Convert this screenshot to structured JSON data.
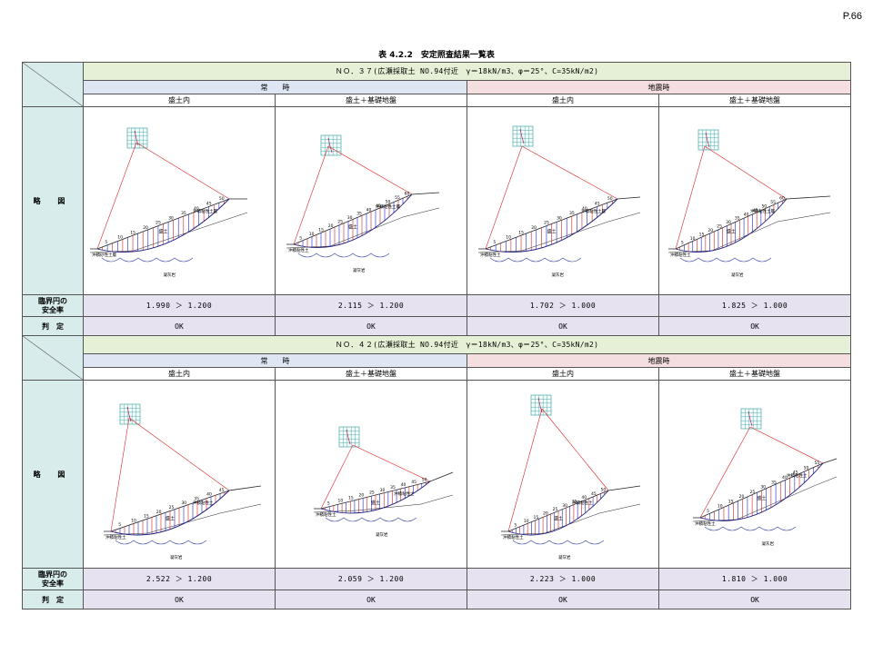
{
  "page_no": "P.66",
  "caption": "表 4.2.2　安定照査結果一覧表",
  "labels": {
    "sketch": "略 図",
    "safety_line1": "臨界円の",
    "safety_line2": "安全率",
    "judgement": "判　定",
    "normal": "常　　時",
    "quake": "地震時",
    "embank": "盛土内",
    "embank_base": "盛土＋基礎地盤"
  },
  "cases": [
    {
      "title": "ＮＯ．３７(広瀬採取土 NO.94付近　γ＝18kN/m3、φ＝25°、C=35kN/m2)",
      "factors": [
        "1.990 ＞ 1.200",
        "2.115 ＞ 1.200",
        "1.702 ＞ 1.000",
        "1.825 ＞ 1.000"
      ],
      "results": [
        "OK",
        "OK",
        "OK",
        "OK"
      ],
      "figures": [
        {
          "layer1": "沖積粘性土層",
          "layer2": "沖積砂性土層",
          "layer3": "凝灰岩",
          "layer4": "盛土",
          "slice_nums": "5 10 15 20 25 30 35 40 45 50"
        },
        {
          "layer1": "沖積粘性土層",
          "layer2": "沖積粘性土",
          "layer3": "凝灰岩",
          "layer4": "盛土",
          "slice_nums": "5 10 15 20 25 30 35 40 45 50 55 60"
        },
        {
          "layer1": "沖積粘性土層",
          "layer2": "沖積粘性土",
          "layer3": "凝灰岩",
          "layer4": "盛土",
          "slice_nums": "5 10 15 20 25 30 35 40 45 50"
        },
        {
          "layer1": "沖積粘性土層",
          "layer2": "沖積粘性土",
          "layer3": "凝灰岩",
          "layer4": "盛土",
          "slice_nums": "5 10 15 20 25 30 35 40 45 50 55 60"
        }
      ]
    },
    {
      "title": "ＮＯ．４２(広瀬採取土 NO.94付近　γ＝18kN/m3、φ＝25°、C=35kN/m2)",
      "factors": [
        "2.522 ＞ 1.200",
        "2.059 ＞ 1.200",
        "2.223 ＞ 1.000",
        "1.810 ＞ 1.000"
      ],
      "results": [
        "OK",
        "OK",
        "OK",
        "OK"
      ],
      "figures": [
        {
          "layer1": "沖積粘性土",
          "layer2": "沖積粘性土",
          "layer3": "凝灰岩",
          "layer4": "盛土",
          "slice_nums": "5 10 15 20 25 30 35 40 45"
        },
        {
          "layer1": "沖積粘性土",
          "layer2": "沖積粘性土",
          "layer3": "凝灰岩",
          "layer4": "盛土",
          "slice_nums": "5 10 15 20 25 30 35 40 45 50"
        },
        {
          "layer1": "沖積粘性土",
          "layer2": "沖積粘性土",
          "layer3": "凝灰岩",
          "layer4": "盛土",
          "slice_nums": "5 10 15 20 25 30 35 40 45 50"
        },
        {
          "layer1": "沖積粘性土",
          "layer2": "沖積粘性土",
          "layer3": "凝灰岩",
          "layer4": "盛土",
          "slice_nums": "5 10 15 20 25 30 35 40 45 50 55"
        }
      ]
    }
  ],
  "colors": {
    "case_title_bg": "#e6f0d6",
    "normal_bg": "#dde6f2",
    "quake_bg": "#f5dedf",
    "result_bg": "#e6e2f0",
    "label_bg": "#d9ecec"
  }
}
